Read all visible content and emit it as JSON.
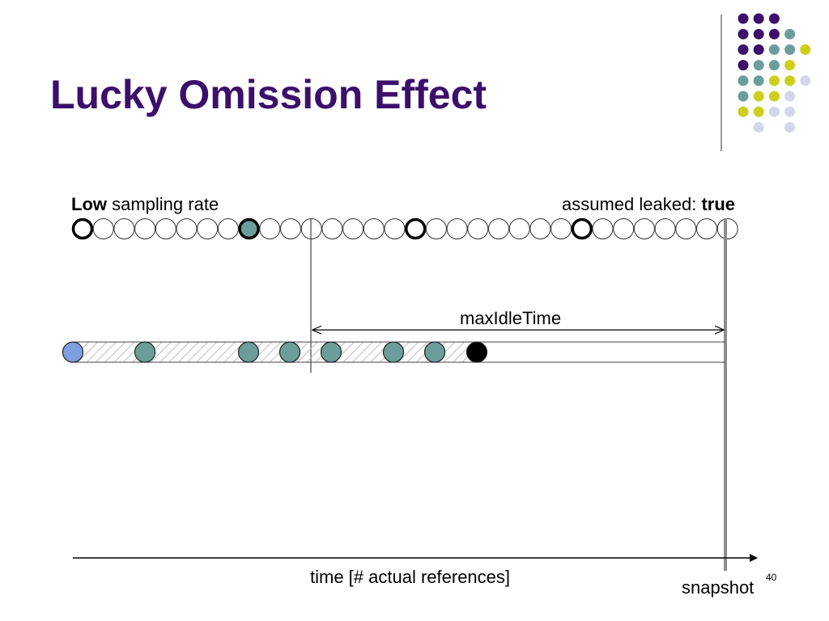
{
  "slide": {
    "title": "Lucky Omission Effect",
    "page_number": "40"
  },
  "labels": {
    "sampling_bold": "Low",
    "sampling_rest": " sampling rate",
    "leaked_prefix": "assumed leaked: ",
    "leaked_value": "true",
    "max_idle": "maxIdleTime",
    "time_axis": "time [# actual references]",
    "snapshot": "snapshot"
  },
  "colors": {
    "title": "#3b0f6b",
    "purple": "#3b0f6b",
    "teal": "#6b9e9a",
    "lime": "#cdcf1c",
    "lavender": "#d6d6ea",
    "first_dot": "#7f9fe0",
    "snapshot_line": "#8c8c8c"
  },
  "top_sequence": {
    "count": 32,
    "sampled_positions": [
      0,
      8,
      16,
      24
    ],
    "teal_position": 8
  },
  "bottom_sequence": {
    "dots": [
      "blue",
      "teal",
      "teal",
      "teal",
      "teal",
      "teal",
      "teal",
      "black"
    ]
  },
  "logo_grid": [
    [
      "purple",
      "purple",
      "purple",
      null,
      null
    ],
    [
      "purple",
      "purple",
      "purple",
      "teal",
      null
    ],
    [
      "purple",
      "purple",
      "teal",
      "teal",
      "lime"
    ],
    [
      "purple",
      "teal",
      "teal",
      "lime",
      null
    ],
    [
      "teal",
      "teal",
      "lime",
      "lime",
      "lavender"
    ],
    [
      "teal",
      "lime",
      "lime",
      "lavender",
      null
    ],
    [
      "lime",
      "lime",
      "lavender",
      "lavender",
      null
    ],
    [
      null,
      "lavender",
      null,
      "lavender",
      null
    ]
  ]
}
